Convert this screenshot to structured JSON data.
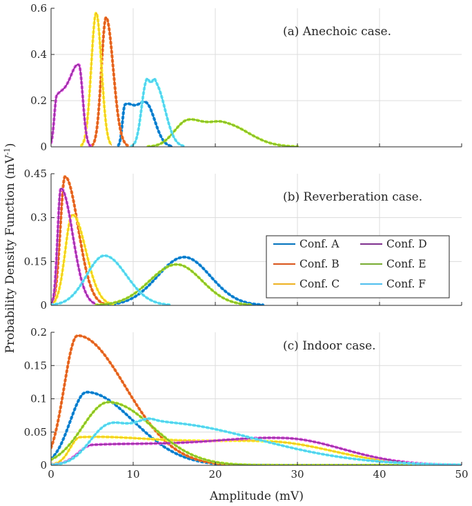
{
  "figure": {
    "ylabel": "Probability Density Function (mV",
    "ylabel_sup": "-1",
    "ylabel_close": ")",
    "xlabel": "Amplitude (mV)"
  },
  "legend": [
    {
      "name": "Conf. A",
      "color": "#0072BD"
    },
    {
      "name": "Conf. B",
      "color": "#D95319"
    },
    {
      "name": "Conf. C",
      "color": "#EDB120"
    },
    {
      "name": "Conf. D",
      "color": "#7E2F8E"
    },
    {
      "name": "Conf. E",
      "color": "#77AC30"
    },
    {
      "name": "Conf. F",
      "color": "#4DBEEE"
    }
  ],
  "fit_colors": {
    "Conf. A": "#1a8fe0",
    "Conf. B": "#f37b2e",
    "Conf. C": "#ffff33",
    "Conf. D": "#e64fe6",
    "Conf. E": "#b5ea2a",
    "Conf. F": "#66f2f2"
  },
  "chart_data": [
    {
      "type": "line",
      "panel": "a",
      "annotation": "(a) Anechoic case.",
      "xlim": [
        0,
        50
      ],
      "ylim": [
        0,
        0.6
      ],
      "yticks": [
        0,
        0.2,
        0.4,
        0.6
      ],
      "yticklabels": [
        "0",
        "0.2",
        "0.4",
        "0.6"
      ],
      "grid": true,
      "series": [
        {
          "name": "Conf. A",
          "fit": "bimodal",
          "x_range": [
            8.2,
            14.8
          ],
          "peaks": [
            [
              9.0,
              0.17
            ],
            [
              11.6,
              0.18
            ]
          ]
        },
        {
          "name": "Conf. B",
          "fit": "unimodal",
          "x_range": [
            5.0,
            9.3
          ],
          "peaks": [
            [
              6.7,
              0.56
            ]
          ]
        },
        {
          "name": "Conf. C",
          "fit": "unimodal",
          "x_range": [
            3.7,
            7.4
          ],
          "peaks": [
            [
              5.5,
              0.58
            ]
          ]
        },
        {
          "name": "Conf. D",
          "fit": "bimodal",
          "x_range": [
            0.0,
            4.8
          ],
          "peaks": [
            [
              0.7,
              0.2
            ],
            [
              3.4,
              0.34
            ]
          ]
        },
        {
          "name": "Conf. E",
          "fit": "bimodal",
          "x_range": [
            11.8,
            30.0
          ],
          "peaks": [
            [
              16.6,
              0.11
            ],
            [
              21.0,
              0.1
            ]
          ]
        },
        {
          "name": "Conf. F",
          "fit": "bimodal",
          "x_range": [
            9.8,
            16.2
          ],
          "peaks": [
            [
              11.6,
              0.27
            ],
            [
              12.7,
              0.27
            ]
          ]
        }
      ]
    },
    {
      "type": "line",
      "panel": "b",
      "annotation": "(b) Reverberation case.",
      "xlim": [
        0,
        50
      ],
      "ylim": [
        0,
        0.45
      ],
      "yticks": [
        0,
        0.15,
        0.3,
        0.45
      ],
      "yticklabels": [
        "0",
        "0.15",
        "0.3",
        "0.45"
      ],
      "grid": true,
      "series": [
        {
          "name": "Conf. A",
          "fit": "unimodal",
          "x_range": [
            6.5,
            25.8
          ],
          "peaks": [
            [
              16.2,
              0.165
            ]
          ]
        },
        {
          "name": "Conf. B",
          "fit": "unimodal",
          "x_range": [
            0.0,
            6.5
          ],
          "peaks": [
            [
              1.7,
              0.44
            ]
          ]
        },
        {
          "name": "Conf. C",
          "fit": "unimodal",
          "x_range": [
            0.0,
            7.5
          ],
          "peaks": [
            [
              2.6,
              0.31
            ]
          ]
        },
        {
          "name": "Conf. D",
          "fit": "unimodal",
          "x_range": [
            0.0,
            5.5
          ],
          "peaks": [
            [
              1.2,
              0.4
            ]
          ]
        },
        {
          "name": "Conf. E",
          "fit": "unimodal",
          "x_range": [
            5.5,
            24.5
          ],
          "peaks": [
            [
              15.3,
              0.14
            ]
          ]
        },
        {
          "name": "Conf. F",
          "fit": "unimodal",
          "x_range": [
            0.0,
            14.5
          ],
          "peaks": [
            [
              6.5,
              0.17
            ]
          ]
        }
      ]
    },
    {
      "type": "line",
      "panel": "c",
      "annotation": "(c) Indoor case.",
      "xlim": [
        0,
        50
      ],
      "ylim": [
        0,
        0.2
      ],
      "xticks": [
        0,
        10,
        20,
        30,
        40,
        50
      ],
      "xticklabels": [
        "0",
        "10",
        "20",
        "30",
        "40",
        "50"
      ],
      "yticks": [
        0,
        0.05,
        0.1,
        0.15,
        0.2
      ],
      "yticklabels": [
        "0",
        "0.05",
        "0.1",
        "0.15",
        "0.2"
      ],
      "grid": true,
      "series": [
        {
          "name": "Conf. A",
          "fit": "skewed",
          "x_range": [
            0,
            50
          ],
          "peaks": [
            [
              4.3,
              0.11
            ]
          ]
        },
        {
          "name": "Conf. B",
          "fit": "skewed",
          "x_range": [
            0,
            50
          ],
          "peaks": [
            [
              3.2,
              0.195
            ]
          ]
        },
        {
          "name": "Conf. C",
          "fit": "bimodal",
          "x_range": [
            0,
            50
          ],
          "peaks": [
            [
              3.5,
              0.04
            ],
            [
              27.0,
              0.033
            ]
          ]
        },
        {
          "name": "Conf. D",
          "fit": "bimodal",
          "x_range": [
            0,
            50
          ],
          "peaks": [
            [
              5.0,
              0.028
            ],
            [
              28.5,
              0.039
            ]
          ]
        },
        {
          "name": "Conf. E",
          "fit": "skewed",
          "x_range": [
            0,
            50
          ],
          "peaks": [
            [
              7.0,
              0.095
            ]
          ]
        },
        {
          "name": "Conf. F",
          "fit": "bimodal",
          "x_range": [
            0,
            50
          ],
          "peaks": [
            [
              7.0,
              0.058
            ],
            [
              12.5,
              0.065
            ]
          ]
        }
      ]
    }
  ]
}
